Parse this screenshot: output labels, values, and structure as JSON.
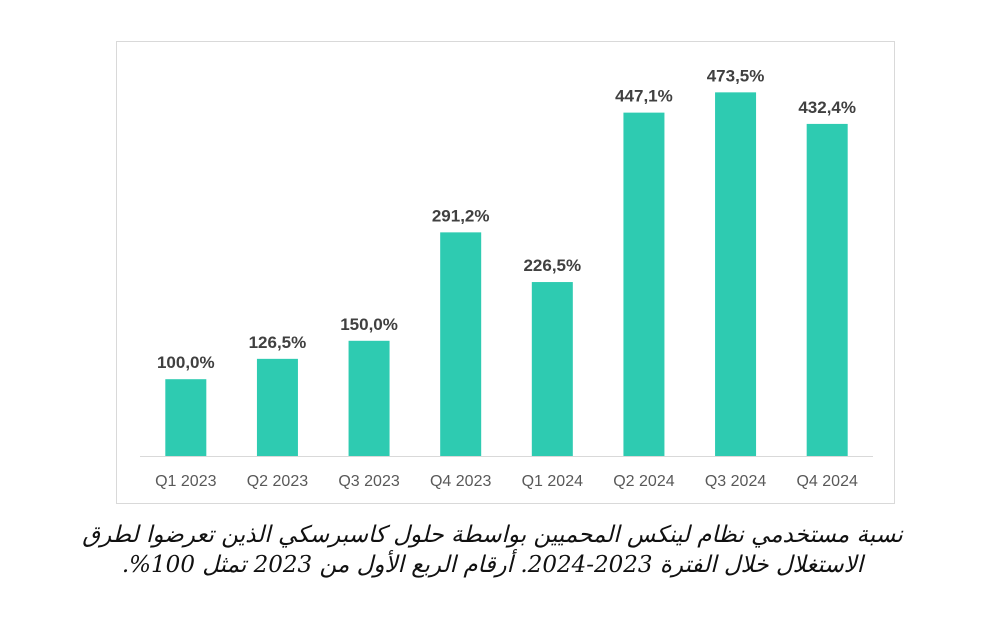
{
  "chart_data": {
    "type": "bar",
    "categories": [
      "Q1 2023",
      "Q2 2023",
      "Q3 2023",
      "Q4 2023",
      "Q1 2024",
      "Q2 2024",
      "Q3 2024",
      "Q4 2024"
    ],
    "values": [
      100.0,
      126.5,
      150.0,
      291.2,
      226.5,
      447.1,
      473.5,
      432.4
    ],
    "value_labels": [
      "100,0%",
      "126,5%",
      "150,0%",
      "291,2%",
      "226,5%",
      "447,1%",
      "473,5%",
      "432,4%"
    ],
    "title": "",
    "xlabel": "",
    "ylabel": "",
    "ylim": [
      0,
      500
    ],
    "grid": false,
    "bar_color": "#2ecbb1"
  },
  "caption": "نسبة مستخدمي نظام لينكس المحميين بواسطة حلول كاسبرسكي الذين تعرضوا لطرق الاستغلال خلال الفترة 2023-2024. أرقام الربع الأول من 2023 تمثل 100%."
}
